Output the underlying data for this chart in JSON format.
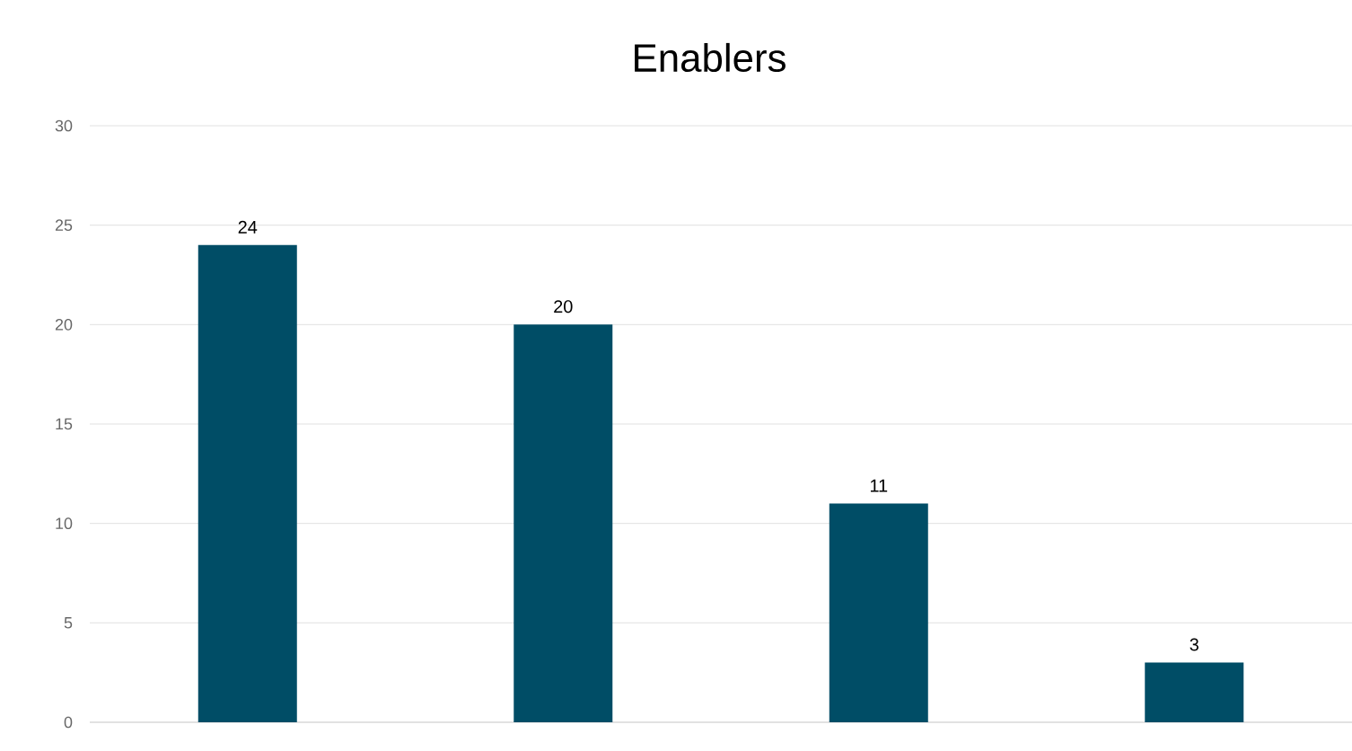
{
  "chart_data": {
    "type": "bar",
    "title": "Enablers",
    "categories": [
      null,
      null,
      null,
      null
    ],
    "values": [
      24,
      20,
      11,
      3
    ],
    "color": "#004d66",
    "ylim": [
      0,
      30
    ],
    "yticks": [
      0,
      5,
      10,
      15,
      20,
      25,
      30
    ],
    "grid": "y",
    "data_labels": true
  }
}
